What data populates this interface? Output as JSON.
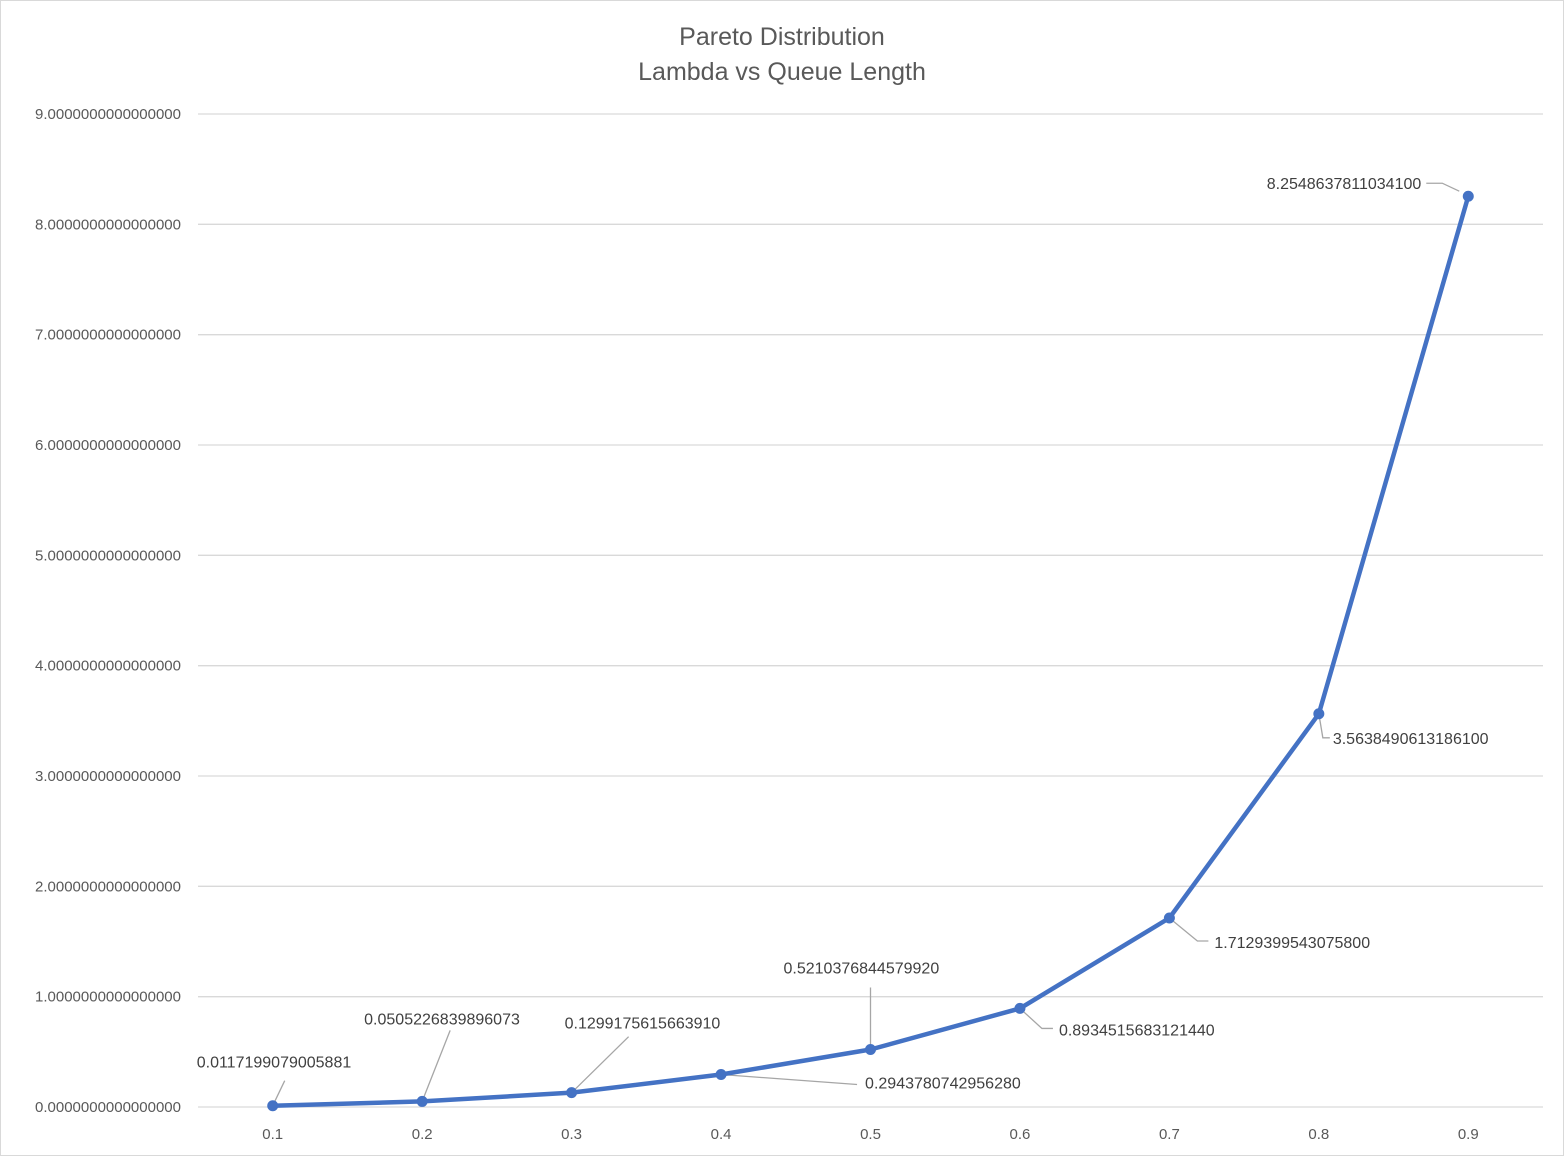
{
  "chart_data": {
    "type": "line",
    "title_lines": [
      "Pareto Distribution",
      "Lambda vs Queue Length"
    ],
    "xlabel": "",
    "ylabel": "",
    "categories": [
      "0.1",
      "0.2",
      "0.3",
      "0.4",
      "0.5",
      "0.6",
      "0.7",
      "0.8",
      "0.9"
    ],
    "series": [
      {
        "values": [
          0.0117199079005881,
          0.0505226839896073,
          0.129917561566391,
          0.294378074295628,
          0.521037684457992,
          0.893451568312144,
          1.71293995430758,
          3.56384906131861,
          8.25486378110341
        ],
        "data_labels": [
          "0.0117199079005881",
          "0.0505226839896073",
          "0.1299175615663910",
          "0.2943780742956280",
          "0.5210376844579920",
          "0.8934515683121440",
          "1.7129399543075800",
          "3.5638490613186100",
          "8.2548637811034100"
        ],
        "color": "#4472c4"
      }
    ],
    "ylim": [
      0,
      9
    ],
    "y_ticks": [
      "0.0000000000000000",
      "1.0000000000000000",
      "2.0000000000000000",
      "3.0000000000000000",
      "4.0000000000000000",
      "5.0000000000000000",
      "6.0000000000000000",
      "7.0000000000000000",
      "8.0000000000000000",
      "9.0000000000000000"
    ],
    "grid": true,
    "legend": "none",
    "colors": {
      "line": "#4472c4",
      "grid": "#d9d9d9",
      "tick_text": "#595959",
      "label_text": "#404040",
      "leader": "#a6a6a6"
    }
  }
}
